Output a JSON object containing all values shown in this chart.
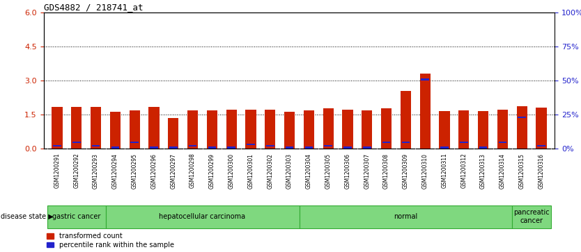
{
  "title": "GDS4882 / 218741_at",
  "samples": [
    "GSM1200291",
    "GSM1200292",
    "GSM1200293",
    "GSM1200294",
    "GSM1200295",
    "GSM1200296",
    "GSM1200297",
    "GSM1200298",
    "GSM1200299",
    "GSM1200300",
    "GSM1200301",
    "GSM1200302",
    "GSM1200303",
    "GSM1200304",
    "GSM1200305",
    "GSM1200306",
    "GSM1200307",
    "GSM1200308",
    "GSM1200309",
    "GSM1200310",
    "GSM1200311",
    "GSM1200312",
    "GSM1200313",
    "GSM1200314",
    "GSM1200315",
    "GSM1200316"
  ],
  "red_values": [
    1.85,
    1.85,
    1.85,
    1.62,
    1.68,
    1.85,
    1.35,
    1.68,
    1.68,
    1.72,
    1.72,
    1.72,
    1.62,
    1.68,
    1.78,
    1.72,
    1.68,
    1.78,
    2.55,
    3.3,
    1.65,
    1.68,
    1.65,
    1.72,
    1.88,
    1.82
  ],
  "blue_values": [
    0.12,
    0.28,
    0.12,
    0.05,
    0.28,
    0.05,
    0.05,
    0.12,
    0.05,
    0.05,
    0.18,
    0.12,
    0.05,
    0.05,
    0.12,
    0.05,
    0.05,
    0.28,
    0.28,
    3.05,
    0.05,
    0.28,
    0.05,
    0.28,
    1.38,
    0.12
  ],
  "disease_groups": [
    {
      "label": "gastric cancer",
      "start": 0,
      "end": 3
    },
    {
      "label": "hepatocellular carcinoma",
      "start": 3,
      "end": 13
    },
    {
      "label": "normal",
      "start": 13,
      "end": 24
    },
    {
      "label": "pancreatic\ncancer",
      "start": 24,
      "end": 26
    }
  ],
  "ylim_left": [
    0,
    6
  ],
  "ylim_right": [
    0,
    100
  ],
  "yticks_left": [
    0,
    1.5,
    3.0,
    4.5,
    6.0
  ],
  "yticks_right": [
    0,
    25,
    50,
    75,
    100
  ],
  "bar_color_red": "#CC2200",
  "bar_color_blue": "#2222CC",
  "background_color": "#FFFFFF",
  "plot_bg_color": "#FFFFFF",
  "tick_bg_color": "#C8C8C8",
  "green_color": "#7FD87F",
  "green_border": "#33AA33",
  "bar_width": 0.55
}
